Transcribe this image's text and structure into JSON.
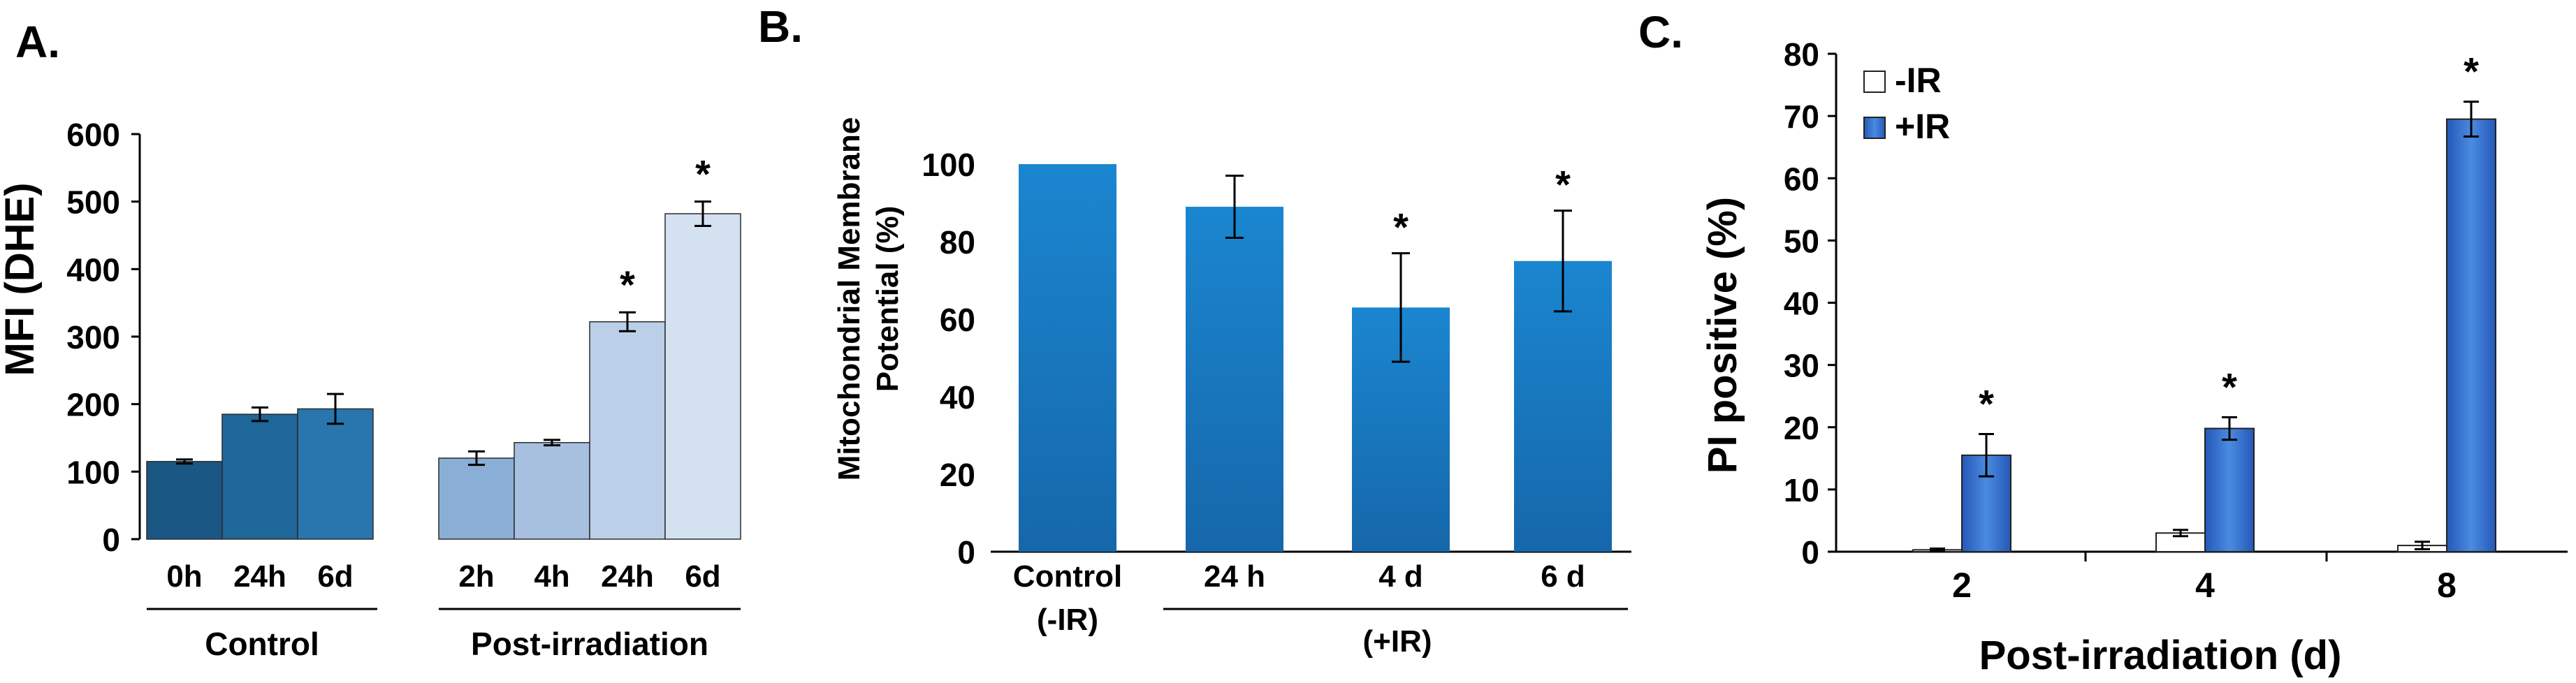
{
  "chart_data": [
    {
      "panel": "A.",
      "type": "bar",
      "ylabel": "MFI (DHE)",
      "ylim": [
        0,
        600
      ],
      "yticks": [
        0,
        100,
        200,
        300,
        400,
        500,
        600
      ],
      "groups": [
        {
          "name": "Control",
          "categories": [
            "0h",
            "24h",
            "6d"
          ],
          "values": [
            115,
            185,
            193
          ],
          "errors": [
            3,
            10,
            22
          ],
          "sig": [
            "",
            "",
            ""
          ],
          "colors": [
            "#1a5785",
            "#1f6699",
            "#2876ad"
          ]
        },
        {
          "name": "Post-irradiation",
          "categories": [
            "2h",
            "4h",
            "24h",
            "6d"
          ],
          "values": [
            120,
            143,
            322,
            482
          ],
          "errors": [
            10,
            4,
            14,
            18
          ],
          "sig": [
            "",
            "",
            "*",
            "*"
          ],
          "colors": [
            "#8aaed6",
            "#a7c0e0",
            "#bccfe8",
            "#d4e1f1"
          ]
        }
      ]
    },
    {
      "panel": "B.",
      "type": "bar",
      "ylabel_lines": [
        "Mitochondrial Membrane",
        "Potential (%)"
      ],
      "ylim": [
        0,
        100
      ],
      "yticks": [
        0,
        20,
        40,
        60,
        80,
        100
      ],
      "categories": [
        {
          "lines": [
            "Control",
            "(-IR)"
          ]
        },
        {
          "lines": [
            "24 h"
          ]
        },
        {
          "lines": [
            "4 d"
          ]
        },
        {
          "lines": [
            "6 d"
          ]
        }
      ],
      "values": [
        100,
        89,
        63,
        75
      ],
      "errors": [
        0,
        8,
        14,
        13
      ],
      "sig": [
        "",
        "",
        "*",
        "*"
      ],
      "group_label": "(+IR)",
      "color": "#1a7cc4"
    },
    {
      "panel": "C.",
      "type": "bar",
      "ylabel": "PI positive (%)",
      "xlabel": "Post-irradiation (d)",
      "ylim": [
        0,
        80
      ],
      "yticks": [
        0,
        10,
        20,
        30,
        40,
        50,
        60,
        70,
        80
      ],
      "categories": [
        "2",
        "4",
        "8"
      ],
      "series": [
        {
          "name": "-IR",
          "values": [
            0.3,
            3,
            1
          ],
          "errors": [
            0.2,
            0.5,
            0.6
          ],
          "color": "#ffffff"
        },
        {
          "name": "+IR",
          "values": [
            15.5,
            19.8,
            69.5
          ],
          "errors": [
            3.4,
            1.8,
            2.8
          ],
          "color": "#2f6fc9"
        }
      ],
      "sig": [
        "*",
        "*",
        "*"
      ],
      "legend_position": "top-left"
    }
  ]
}
